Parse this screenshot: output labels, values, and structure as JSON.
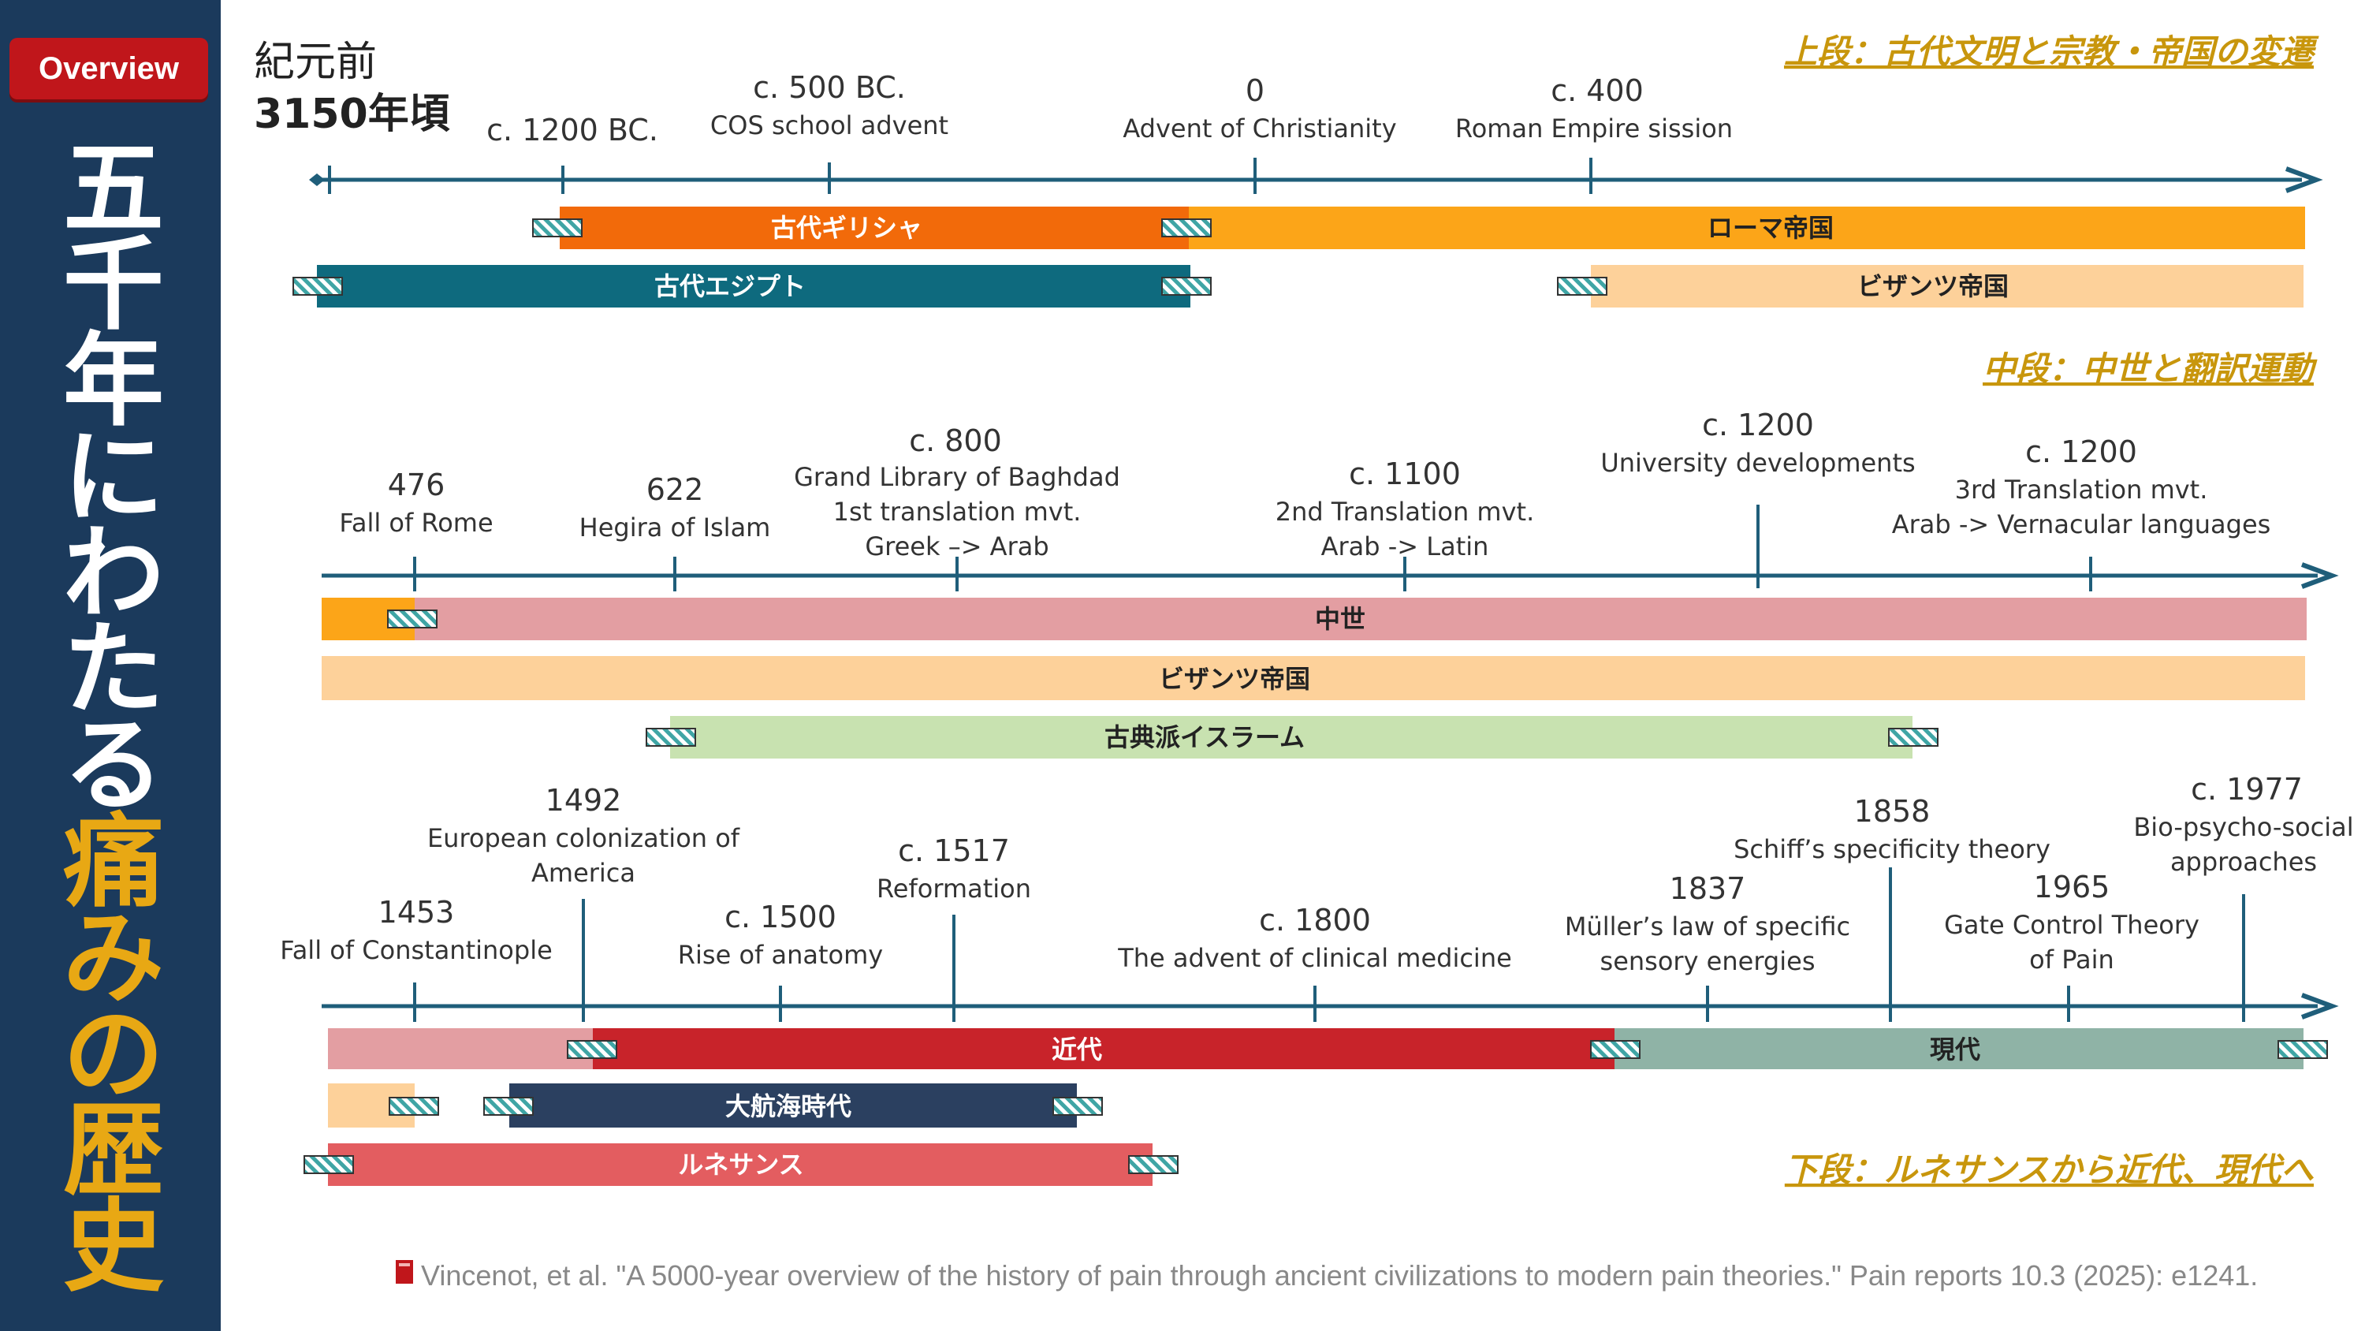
{
  "badge": "Overview",
  "title_white": [
    "五",
    "千",
    "年",
    "に",
    "わ",
    "た",
    "る"
  ],
  "title_gold": [
    "痛",
    "み",
    "の",
    "歴",
    "史"
  ],
  "start_label_1": "紀元前",
  "start_label_2": "3150年頃",
  "sections": {
    "upper": "上段：古代文明と宗教・帝国の変遷",
    "middle": "中段：中世と翻訳運動",
    "lower": "下段：ルネサンスから近代、現代へ"
  },
  "events_upper": [
    {
      "year": "c. 1200 BC.",
      "desc": ""
    },
    {
      "year": "c. 500 BC.",
      "desc": "COS school advent"
    },
    {
      "year": "0",
      "desc": "Advent of Christianity"
    },
    {
      "year": "c. 400",
      "desc": "Roman Empire sission"
    }
  ],
  "bars_upper": [
    {
      "label": "古代ギリシャ",
      "color": "#f26a0a"
    },
    {
      "label": "ローマ帝国",
      "color": "#fca518"
    },
    {
      "label": "古代エジプト",
      "color": "#0e6a7e"
    },
    {
      "label": "ビザンツ帝国",
      "color": "#fdd19a"
    }
  ],
  "events_middle": [
    {
      "year": "476",
      "lines": [
        "Fall of Rome"
      ]
    },
    {
      "year": "622",
      "lines": [
        "Hegira of Islam"
      ]
    },
    {
      "year": "c. 800",
      "lines": [
        "Grand Library of Baghdad",
        "1st translation mvt.",
        "Greek –> Arab"
      ]
    },
    {
      "year": "c. 1100",
      "lines": [
        "2nd Translation mvt.",
        "Arab -> Latin"
      ]
    },
    {
      "year": "c. 1200",
      "lines": [
        "University developments"
      ]
    },
    {
      "year": "c. 1200",
      "lines": [
        "3rd Translation mvt.",
        "Arab -> Vernacular languages"
      ]
    }
  ],
  "bars_middle": [
    {
      "label": "中世",
      "color": "#e39ea2"
    },
    {
      "label": "ビザンツ帝国",
      "color": "#fdd19a"
    },
    {
      "label": "古典派イスラーム",
      "color": "#c8e2b0"
    }
  ],
  "events_lower": [
    {
      "year": "1453",
      "lines": [
        "Fall of Constantinople"
      ]
    },
    {
      "year": "1492",
      "lines": [
        "European colonization of",
        "America"
      ]
    },
    {
      "year": "c. 1500",
      "lines": [
        "Rise of anatomy"
      ]
    },
    {
      "year": "c. 1517",
      "lines": [
        "Reformation"
      ]
    },
    {
      "year": "c. 1800",
      "lines": [
        "The advent of clinical medicine"
      ]
    },
    {
      "year": "1837",
      "lines": [
        "Müller’s law of specific",
        "sensory energies"
      ]
    },
    {
      "year": "1858",
      "lines": [
        "Schiff’s specificity theory"
      ]
    },
    {
      "year": "1965",
      "lines": [
        "Gate Control Theory",
        "of Pain"
      ]
    },
    {
      "year": "c. 1977",
      "lines": [
        "Bio-psycho-social",
        "approaches"
      ]
    }
  ],
  "bars_lower": [
    {
      "label": "近代",
      "color": "#c8232a"
    },
    {
      "label": "現代",
      "color": "#8fb3a6"
    },
    {
      "label": "大航海時代",
      "color": "#2b4060"
    },
    {
      "label": "ルネサンス",
      "color": "#e35d60"
    }
  ],
  "citation": "Vincenot, et al. \"A 5000-year overview of the history of pain through ancient civilizations to modern pain theories.\" Pain reports 10.3 (2025): e1241."
}
